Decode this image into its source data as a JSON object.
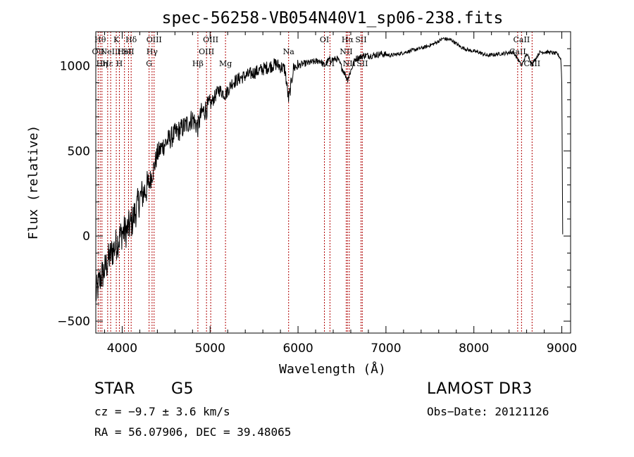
{
  "chart_data": {
    "type": "line",
    "title": "spec-56258-VB054N40V1_sp06-238.fits",
    "xlabel": "Wavelength (Å)",
    "ylabel": "Flux (relative)",
    "xlim": [
      3700,
      9100
    ],
    "ylim": [
      -570,
      1200
    ],
    "x_ticks": [
      {
        "value": 4000,
        "label": "4000"
      },
      {
        "value": 5000,
        "label": "5000"
      },
      {
        "value": 6000,
        "label": "6000"
      },
      {
        "value": 7000,
        "label": "7000"
      },
      {
        "value": 8000,
        "label": "8000"
      },
      {
        "value": 9000,
        "label": "9000"
      }
    ],
    "y_ticks": [
      {
        "value": -500,
        "label": "−500"
      },
      {
        "value": 0,
        "label": "0"
      },
      {
        "value": 500,
        "label": "500"
      },
      {
        "value": 1000,
        "label": "1000"
      }
    ],
    "series": [
      {
        "name": "flux",
        "color": "#000000",
        "x": [
          3700,
          3750,
          3800,
          3850,
          3900,
          3950,
          4000,
          4050,
          4100,
          4150,
          4200,
          4250,
          4300,
          4350,
          4400,
          4450,
          4500,
          4600,
          4700,
          4800,
          4861,
          4900,
          5000,
          5100,
          5175,
          5250,
          5350,
          5450,
          5550,
          5650,
          5750,
          5850,
          5893,
          5950,
          6050,
          6150,
          6250,
          6300,
          6350,
          6450,
          6563,
          6650,
          6750,
          6850,
          6950,
          7050,
          7150,
          7300,
          7450,
          7550,
          7650,
          7750,
          7850,
          7950,
          8050,
          8150,
          8300,
          8450,
          8498,
          8542,
          8600,
          8662,
          8750,
          8850,
          8950,
          8990,
          9000,
          9010
        ],
        "values": [
          -350,
          -250,
          -200,
          -130,
          -80,
          -30,
          20,
          30,
          70,
          140,
          220,
          260,
          300,
          380,
          480,
          520,
          550,
          600,
          640,
          690,
          640,
          720,
          770,
          860,
          830,
          900,
          930,
          950,
          970,
          990,
          1010,
          980,
          800,
          990,
          1010,
          1020,
          1030,
          1000,
          1035,
          1040,
          920,
          1040,
          1060,
          1060,
          1070,
          1060,
          1070,
          1090,
          1110,
          1130,
          1160,
          1150,
          1110,
          1090,
          1080,
          1060,
          1070,
          1080,
          1040,
          1000,
          1070,
          1010,
          1080,
          1080,
          1070,
          1040,
          900,
          10
        ]
      }
    ],
    "lines": [
      {
        "x": 3727,
        "label": "OII",
        "row": 1
      },
      {
        "x": 3750,
        "label": "Hθ",
        "row": 0
      },
      {
        "x": 3770,
        "label": "Hη",
        "row": 2
      },
      {
        "x": 3835,
        "label": "Hε",
        "row": 2
      },
      {
        "x": 3869,
        "label": "NeIII",
        "row": 1
      },
      {
        "x": 3933,
        "label": "K",
        "row": 0
      },
      {
        "x": 3968,
        "label": "H",
        "row": 2
      },
      {
        "x": 4026,
        "label": "HeI",
        "row": 1
      },
      {
        "x": 4072,
        "label": "SII",
        "row": 1
      },
      {
        "x": 4102,
        "label": "Hδ",
        "row": 0
      },
      {
        "x": 4306,
        "label": "G",
        "row": 2
      },
      {
        "x": 4340,
        "label": "Hγ",
        "row": 1
      },
      {
        "x": 4363,
        "label": "OIII",
        "row": 0
      },
      {
        "x": 4861,
        "label": "Hβ",
        "row": 2
      },
      {
        "x": 4959,
        "label": "OIII",
        "row": 1
      },
      {
        "x": 5007,
        "label": "OIII",
        "row": 0
      },
      {
        "x": 5175,
        "label": "Mg",
        "row": 2
      },
      {
        "x": 5893,
        "label": "Na",
        "row": 1
      },
      {
        "x": 6300,
        "label": "OI",
        "row": 0
      },
      {
        "x": 6363,
        "label": "OI",
        "row": 2
      },
      {
        "x": 6548,
        "label": "NII",
        "row": 1
      },
      {
        "x": 6563,
        "label": "Hα",
        "row": 0
      },
      {
        "x": 6583,
        "label": "NII",
        "row": 2
      },
      {
        "x": 6716,
        "label": "SII",
        "row": 0
      },
      {
        "x": 6731,
        "label": "SII",
        "row": 2
      },
      {
        "x": 8498,
        "label": "CaII",
        "row": 1
      },
      {
        "x": 8542,
        "label": "CaII",
        "row": 0
      },
      {
        "x": 8662,
        "label": "CaII",
        "row": 2
      }
    ],
    "line_color": "#b00000",
    "grid": false,
    "legend": "none"
  },
  "info": {
    "object_class": "STAR",
    "subclass": "G5",
    "survey": "LAMOST DR3",
    "redshift": "cz = −9.7 ± 3.6 km/s",
    "obs_date": "Obs−Date: 20121126",
    "coords": "RA =  56.07906, DEC =  39.48065"
  }
}
